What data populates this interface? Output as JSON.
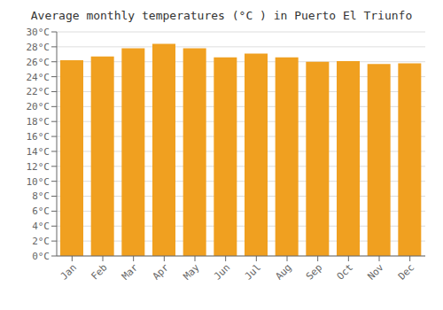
{
  "chart_data": {
    "type": "bar",
    "title": "Average monthly temperatures (°C ) in Puerto El Triunfo",
    "categories": [
      "Jan",
      "Feb",
      "Mar",
      "Apr",
      "May",
      "Jun",
      "Jul",
      "Aug",
      "Sep",
      "Oct",
      "Nov",
      "Dec"
    ],
    "values": [
      26.2,
      26.7,
      27.8,
      28.4,
      27.8,
      26.6,
      27.1,
      26.6,
      26.0,
      26.1,
      25.7,
      25.8
    ],
    "color": "#F0A020",
    "ylim": [
      0,
      30
    ],
    "yticks": [
      {
        "value": 0,
        "label": "0°C"
      },
      {
        "value": 2,
        "label": "2°C"
      },
      {
        "value": 4,
        "label": "4°C"
      },
      {
        "value": 6,
        "label": "6°C"
      },
      {
        "value": 8,
        "label": "8°C"
      },
      {
        "value": 10,
        "label": "10°C"
      },
      {
        "value": 12,
        "label": "12°C"
      },
      {
        "value": 14,
        "label": "14°C"
      },
      {
        "value": 16,
        "label": "16°C"
      },
      {
        "value": 18,
        "label": "18°C"
      },
      {
        "value": 20,
        "label": "20°C"
      },
      {
        "value": 22,
        "label": "22°C"
      },
      {
        "value": 24,
        "label": "24°C"
      },
      {
        "value": 26,
        "label": "26°C"
      },
      {
        "value": 28,
        "label": "28°C"
      },
      {
        "value": 30,
        "label": "30°C"
      }
    ],
    "grid": true
  }
}
